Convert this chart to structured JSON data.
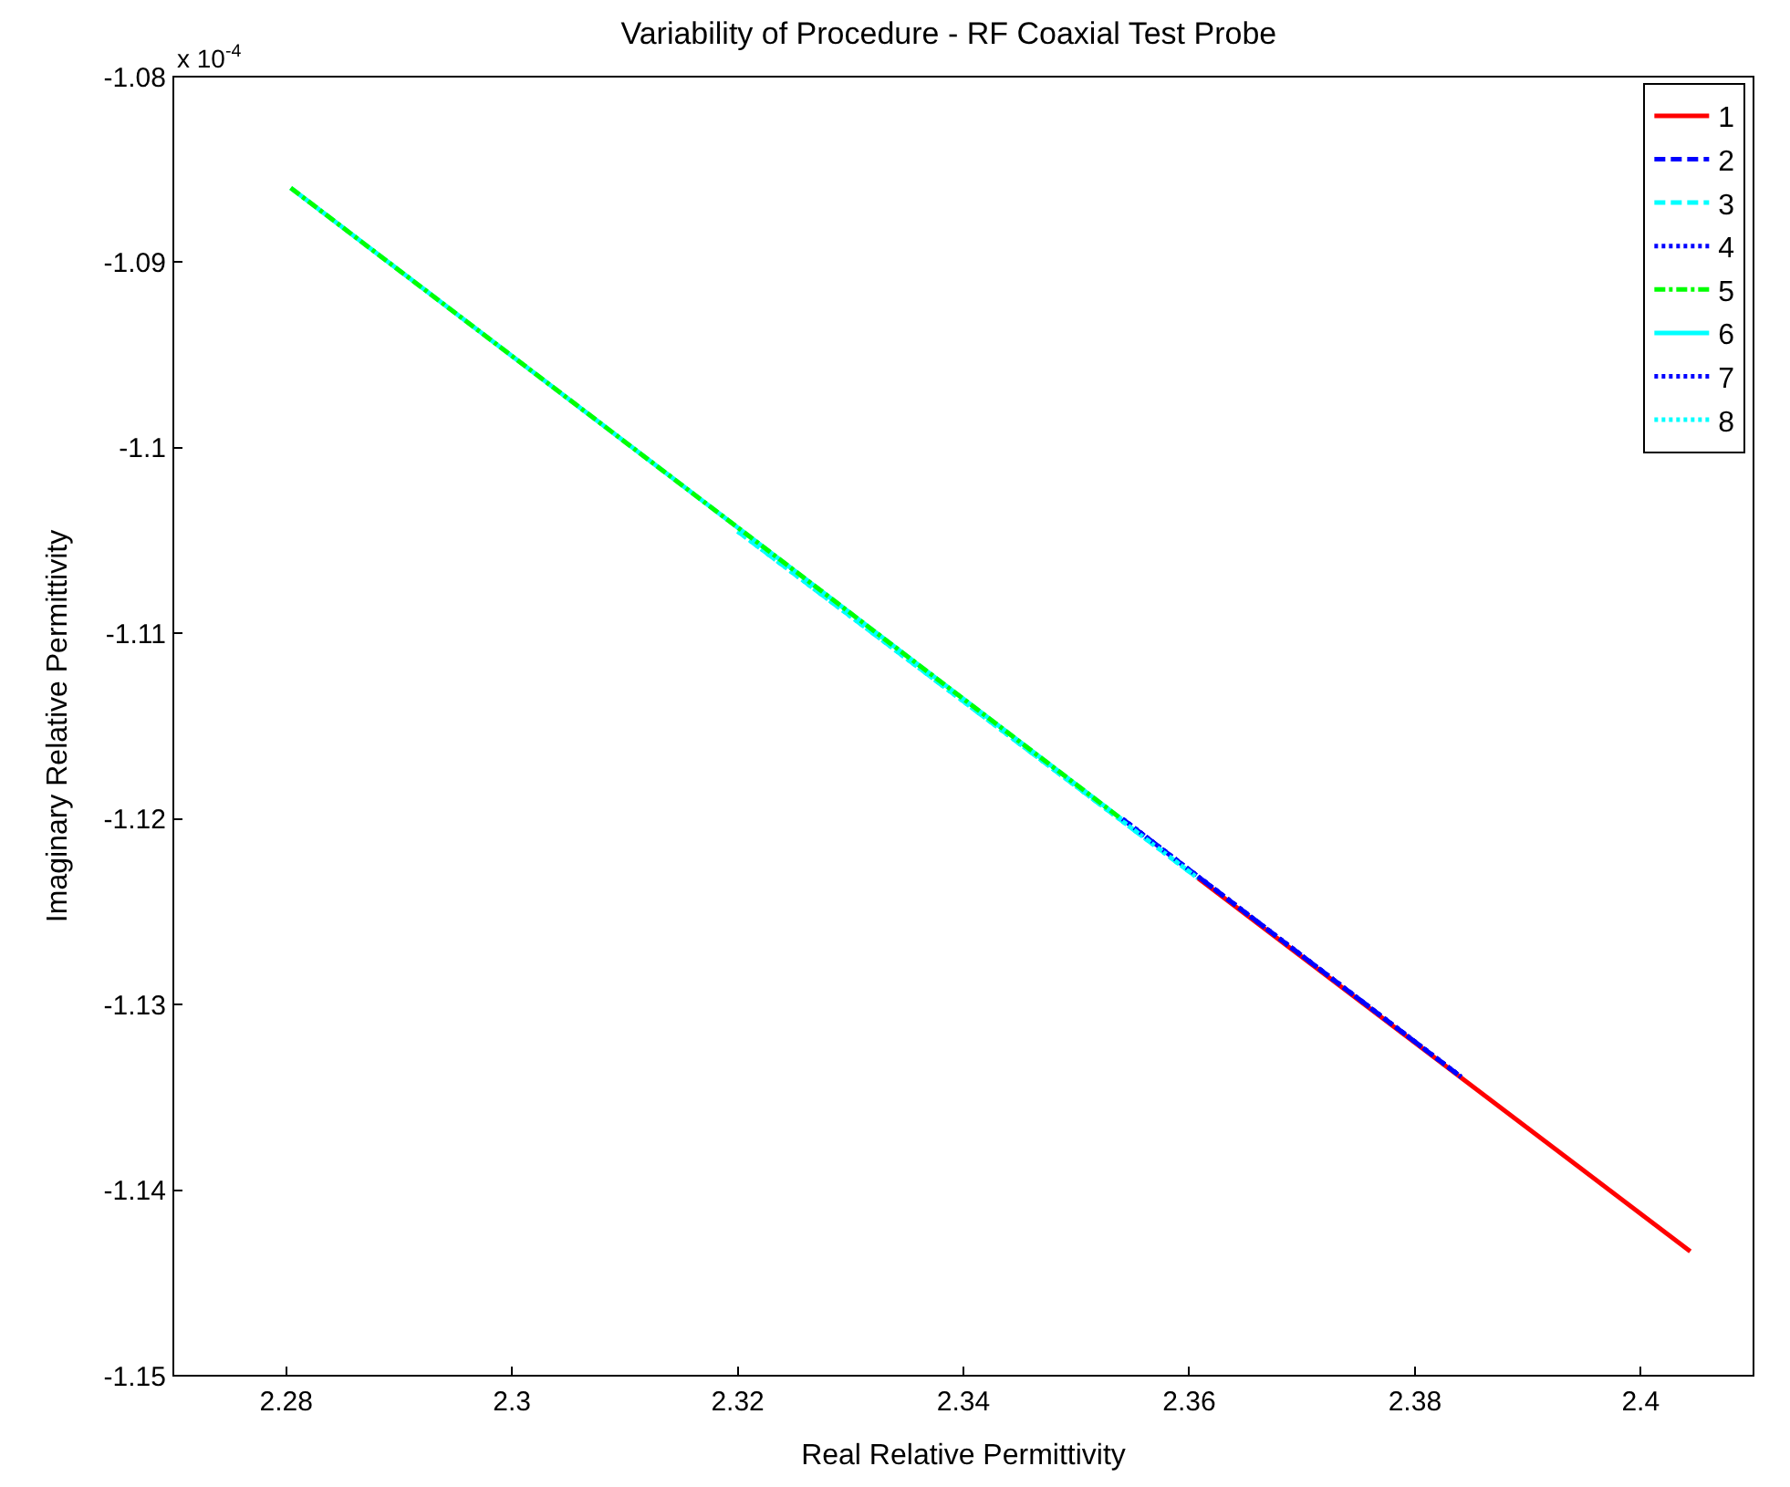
{
  "chart_data": {
    "type": "line",
    "title": "Variability of Procedure - RF Coaxial Test Probe",
    "xlabel": "Real Relative Permittivity",
    "ylabel": "Imaginary Relative Permittivity",
    "annotations": [
      "x 10$^{-4}$"
    ],
    "xlim": [
      2.27,
      2.41
    ],
    "xticks": [
      2.28,
      2.3,
      2.32,
      2.34,
      2.36,
      2.38,
      2.4
    ],
    "ylim": [
      -1.15,
      -1.08
    ],
    "yticks": [
      -1.15,
      -1.14,
      -1.13,
      -1.12,
      -1.11,
      {
        "value": -1.1,
        "label": "-1.1"
      },
      -1.09,
      -1.08
    ],
    "grid": false,
    "legend": "top right",
    "marker": "none",
    "series": [
      {
        "name": "1",
        "color": "#ff0000",
        "line_style": "solid",
        "x": [
          2.3608,
          2.4044
        ],
        "values": [
          -1.1232,
          -1.1433
        ]
      },
      {
        "name": "2",
        "color": "#0000ff",
        "line_style": "dashed",
        "x": [
          2.3541,
          2.3841
        ],
        "values": [
          -1.12,
          -1.1339
        ]
      },
      {
        "name": "3",
        "color": "#00ffff",
        "line_style": "dashed",
        "x": [
          2.32,
          2.3608
        ],
        "values": [
          -1.1045,
          -1.1232
        ]
      },
      {
        "name": "4",
        "color": "#0000ff",
        "line_style": "dotted",
        "x": [
          2.3541,
          2.3841
        ],
        "values": [
          -1.12,
          -1.1339
        ]
      },
      {
        "name": "5",
        "color": "#00ff00",
        "line_style": "dashdot",
        "x": [
          2.2804,
          2.354
        ],
        "values": [
          -1.086,
          -1.12
        ]
      },
      {
        "name": "6",
        "color": "#00ffff",
        "line_style": "solid",
        "x": [
          2.2804,
          2.354
        ],
        "values": [
          -1.086,
          -1.12
        ]
      },
      {
        "name": "7",
        "color": "#0000ff",
        "line_style": "dotted",
        "x": [
          2.3541,
          2.3841
        ],
        "values": [
          -1.12,
          -1.1339
        ]
      },
      {
        "name": "8",
        "color": "#00ffff",
        "line_style": "dotted",
        "x": [
          2.32,
          2.3608
        ],
        "values": [
          -1.1045,
          -1.1232
        ]
      }
    ]
  }
}
